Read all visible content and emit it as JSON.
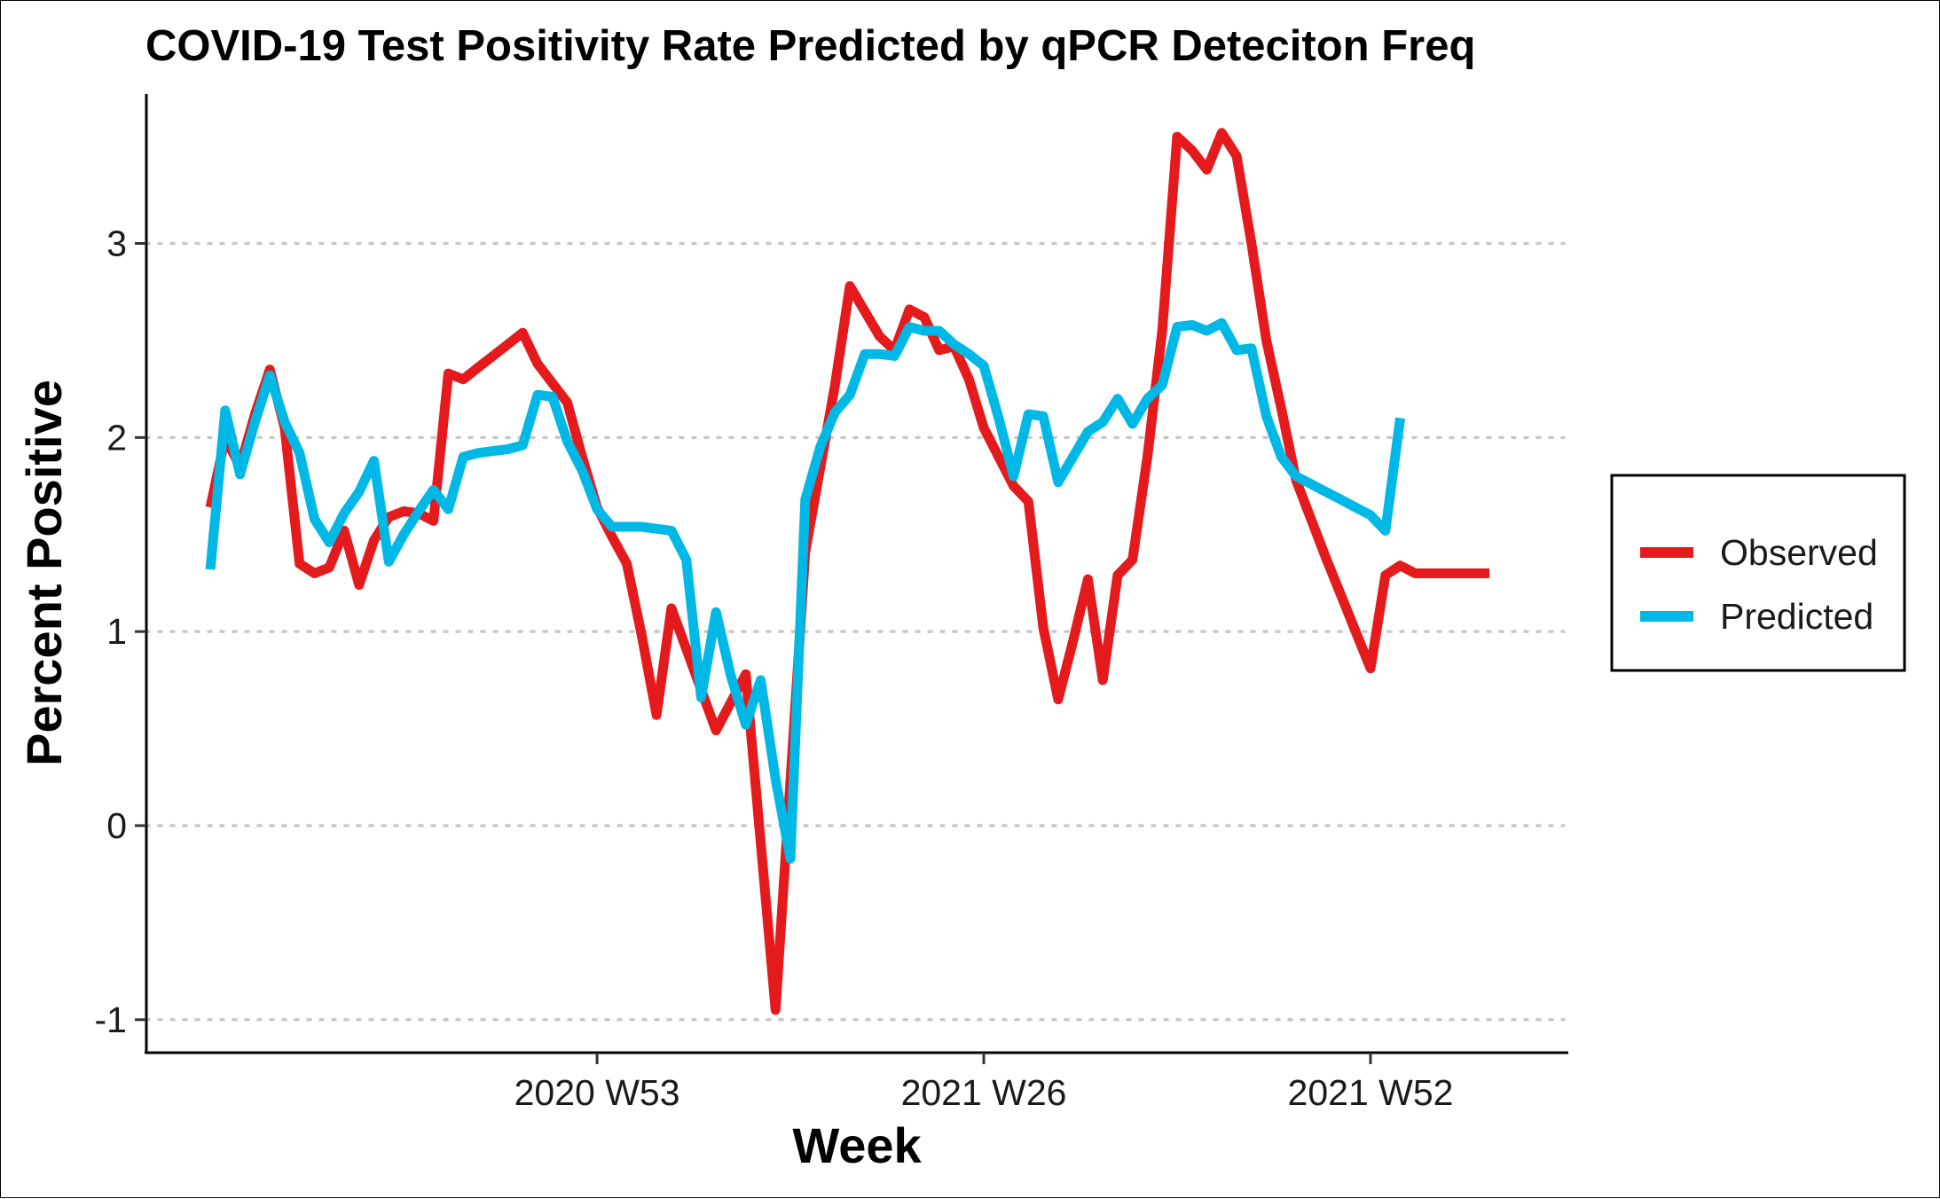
{
  "chart_data": {
    "type": "line",
    "title": "COVID-19 Test Positivity Rate Predicted by qPCR Deteciton Freq",
    "xlabel": "Week",
    "ylabel": "Percent Positive",
    "x_tick_labels": [
      "2020 W53",
      "2021 W26",
      "2021 W52"
    ],
    "x_tick_positions_week_index": [
      26,
      52,
      78
    ],
    "y_ticks": [
      -1,
      0,
      1,
      2,
      3
    ],
    "y_tick_labels": [
      "-1",
      "0",
      "1",
      "2",
      "3"
    ],
    "ylim": [
      -1.17,
      3.77
    ],
    "xlim": [
      -4.3,
      91.3
    ],
    "grid": "horizontal-dotted",
    "legend_position": "right",
    "series": [
      {
        "name": "Observed",
        "color": "#E41A1C",
        "x": [
          0,
          1,
          2,
          3,
          4,
          5,
          6,
          7,
          8,
          9,
          10,
          11,
          12,
          13,
          14,
          15,
          16,
          17,
          18,
          19,
          20,
          21,
          22,
          23,
          24,
          25,
          26,
          27,
          28,
          29,
          30,
          31,
          34,
          36,
          38,
          40,
          42,
          43,
          45,
          46,
          47,
          48,
          49,
          50,
          51,
          52,
          53,
          54,
          55,
          56,
          57,
          58,
          59,
          60,
          61,
          62,
          63,
          64,
          65,
          66,
          67,
          68,
          69,
          70,
          71,
          72,
          73,
          74,
          75,
          76,
          77,
          78,
          79,
          80,
          81,
          82,
          83,
          84,
          85,
          86,
          87,
          88,
          89,
          90
        ],
        "y": [
          1.64,
          2.0,
          1.85,
          2.12,
          2.35,
          2.05,
          1.35,
          1.3,
          1.33,
          1.52,
          1.24,
          1.47,
          1.59,
          1.62,
          1.61,
          1.57,
          2.33,
          2.3,
          2.36,
          2.42,
          2.48,
          2.54,
          2.38,
          2.28,
          2.18,
          1.9,
          1.64,
          1.49,
          1.35,
          0.98,
          0.57,
          1.12,
          0.49,
          0.78,
          -0.95,
          1.41,
          2.27,
          2.78,
          2.52,
          2.45,
          2.66,
          2.62,
          2.45,
          2.47,
          2.3,
          2.05,
          1.9,
          1.75,
          1.67,
          1.02,
          0.65,
          0.95,
          1.27,
          0.75,
          1.29,
          1.37,
          1.9,
          2.55,
          3.55,
          3.48,
          3.38,
          3.57,
          3.45,
          3.0,
          2.5,
          2.15,
          1.78,
          1.58,
          1.38,
          1.19,
          1.0,
          0.81,
          1.29,
          1.34,
          1.3,
          1.3,
          1.3,
          1.3,
          1.3,
          1.3,
          1.3,
          1.3,
          1.3,
          1.3
        ],
        "x_end_index": 79
      },
      {
        "name": "Predicted",
        "color": "#00B8E5",
        "x": [
          0,
          1,
          2,
          3,
          4,
          5,
          6,
          7,
          8,
          9,
          10,
          11,
          12,
          13,
          14,
          15,
          16,
          17,
          18,
          19,
          20,
          21,
          22,
          23,
          24,
          25,
          26,
          27,
          28,
          29,
          30,
          31,
          32,
          33,
          34,
          35,
          36,
          37,
          38,
          39,
          40,
          41,
          42,
          43,
          44,
          45,
          46,
          47,
          48,
          49,
          50,
          51,
          52,
          53,
          54,
          55,
          56,
          57,
          58,
          59,
          60,
          61,
          62,
          63,
          64,
          65,
          66,
          67,
          68,
          69,
          70,
          71,
          72,
          73,
          74,
          75,
          76,
          77,
          78,
          79,
          80
        ],
        "y": [
          1.32,
          2.14,
          1.81,
          2.08,
          2.32,
          2.08,
          1.92,
          1.58,
          1.46,
          1.61,
          1.72,
          1.88,
          1.36,
          1.5,
          1.62,
          1.73,
          1.63,
          1.9,
          1.92,
          1.93,
          1.94,
          1.96,
          2.22,
          2.21,
          1.98,
          1.83,
          1.63,
          1.54,
          1.54,
          1.54,
          1.53,
          1.52,
          1.37,
          0.66,
          1.1,
          0.77,
          0.52,
          0.75,
          0.24,
          -0.17,
          1.68,
          1.95,
          2.13,
          2.22,
          2.43,
          2.43,
          2.42,
          2.57,
          2.55,
          2.55,
          2.48,
          2.43,
          2.37,
          2.1,
          1.8,
          2.12,
          2.11,
          1.77,
          1.9,
          2.03,
          2.08,
          2.2,
          2.07,
          2.2,
          2.27,
          2.57,
          2.58,
          2.55,
          2.59,
          2.45,
          2.46,
          2.11,
          1.9,
          1.8,
          1.76,
          1.72,
          1.68,
          1.64,
          1.6,
          1.52,
          2.1
        ]
      }
    ]
  }
}
